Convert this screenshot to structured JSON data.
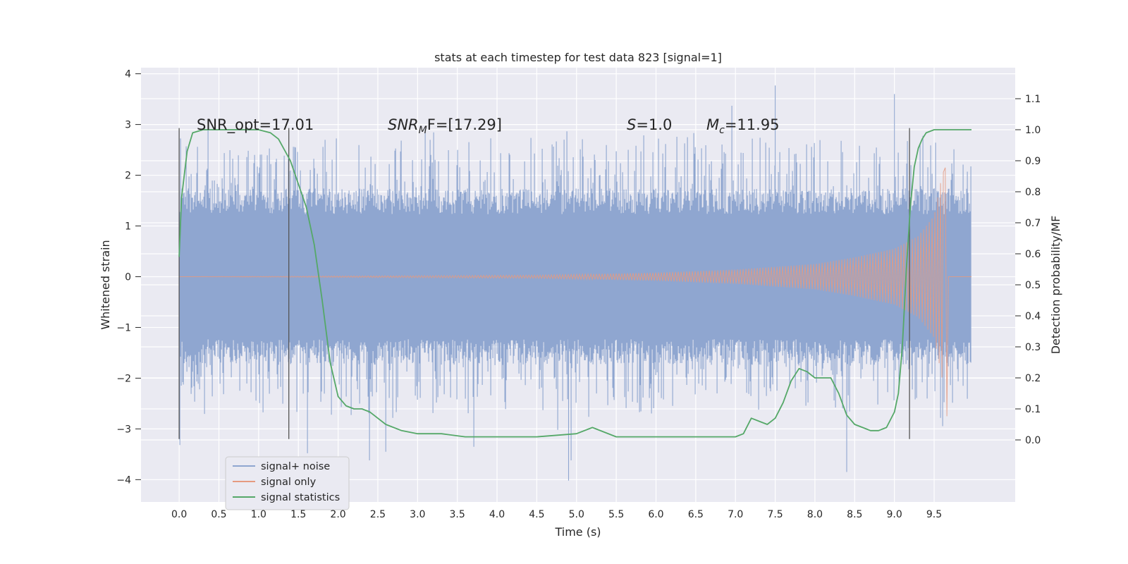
{
  "chart_data": {
    "type": "line",
    "title": "stats at each timestep for test data 823 [signal=1]",
    "xlabel": "Time (s)",
    "ylabel_left": "Whitened strain",
    "ylabel_right": "Detection probability/MF",
    "xlim": [
      -0.48,
      10.52
    ],
    "ylim_left": [
      -4.44,
      4.12
    ],
    "ylim_right": [
      -0.2,
      1.2
    ],
    "x_ticks": [
      "0.0",
      "0.5",
      "1.0",
      "1.5",
      "2.0",
      "2.5",
      "3.0",
      "3.5",
      "4.0",
      "4.5",
      "5.0",
      "5.5",
      "6.0",
      "6.5",
      "7.0",
      "7.5",
      "8.0",
      "8.5",
      "9.0",
      "9.5"
    ],
    "y_left_ticks": [
      "4",
      "3",
      "2",
      "1",
      "0",
      "−1",
      "−2",
      "−3",
      "−4"
    ],
    "y_right_ticks": [
      "1.1",
      "1.0",
      "0.9",
      "0.8",
      "0.7",
      "0.6",
      "0.5",
      "0.4",
      "0.3",
      "0.2",
      "0.1",
      "0.0"
    ],
    "grid": true,
    "legend_placement": "lower-left",
    "annotations": {
      "snr_opt": "SNR_opt=17.01",
      "snr_mf_italic": "SNR",
      "snr_mf_sub": "M",
      "snr_mf_rest": "F=[17.29]",
      "s_italic": "S",
      "s_rest": "=1.0",
      "mc_italic": "M",
      "mc_sub": "c",
      "mc_rest": "=11.95"
    },
    "vertical_markers_x": [
      0.0,
      1.38,
      9.19
    ],
    "series": [
      {
        "name": "signal+ noise",
        "color": "#8fa6d0",
        "axis": "left",
        "x_range": [
          0.0,
          9.97
        ],
        "envelope_typical": 1.45,
        "envelope_peak_max": 3.77,
        "envelope_peak_min": -4.02
      },
      {
        "name": "signal only",
        "color": "#e59a80",
        "axis": "left",
        "chirp_points": [
          [
            0.0,
            0.0
          ],
          [
            4.5,
            0.03
          ],
          [
            6.0,
            0.08
          ],
          [
            7.0,
            0.14
          ],
          [
            8.0,
            0.25
          ],
          [
            8.5,
            0.38
          ],
          [
            9.0,
            0.55
          ],
          [
            9.3,
            0.8
          ],
          [
            9.5,
            1.2
          ],
          [
            9.6,
            2.0
          ],
          [
            9.64,
            2.15
          ],
          [
            9.66,
            -2.75
          ],
          [
            9.68,
            0.0
          ]
        ]
      },
      {
        "name": "signal statistics",
        "color": "#55a868",
        "axis": "right",
        "x": [
          0.0,
          0.03,
          0.1,
          0.17,
          0.3,
          0.5,
          1.0,
          1.15,
          1.25,
          1.4,
          1.6,
          1.7,
          1.8,
          1.9,
          2.0,
          2.1,
          2.2,
          2.3,
          2.4,
          2.5,
          2.6,
          2.8,
          3.0,
          3.3,
          3.6,
          4.0,
          4.5,
          5.0,
          5.2,
          5.5,
          6.0,
          6.4,
          6.6,
          7.0,
          7.1,
          7.2,
          7.3,
          7.4,
          7.5,
          7.6,
          7.7,
          7.8,
          7.9,
          8.0,
          8.1,
          8.2,
          8.3,
          8.4,
          8.5,
          8.6,
          8.7,
          8.8,
          8.9,
          9.0,
          9.05,
          9.1,
          9.15,
          9.2,
          9.25,
          9.3,
          9.35,
          9.4,
          9.5,
          9.6,
          9.7,
          9.97
        ],
        "y": [
          0.59,
          0.78,
          0.93,
          0.99,
          1.0,
          1.0,
          1.0,
          0.99,
          0.97,
          0.9,
          0.75,
          0.63,
          0.45,
          0.25,
          0.14,
          0.11,
          0.1,
          0.1,
          0.09,
          0.07,
          0.05,
          0.03,
          0.02,
          0.02,
          0.01,
          0.01,
          0.01,
          0.02,
          0.04,
          0.01,
          0.01,
          0.01,
          0.01,
          0.01,
          0.02,
          0.07,
          0.06,
          0.05,
          0.07,
          0.12,
          0.19,
          0.23,
          0.22,
          0.2,
          0.2,
          0.2,
          0.15,
          0.08,
          0.05,
          0.04,
          0.03,
          0.03,
          0.04,
          0.09,
          0.15,
          0.3,
          0.55,
          0.75,
          0.88,
          0.94,
          0.97,
          0.99,
          1.0,
          1.0,
          1.0,
          1.0
        ]
      }
    ]
  }
}
